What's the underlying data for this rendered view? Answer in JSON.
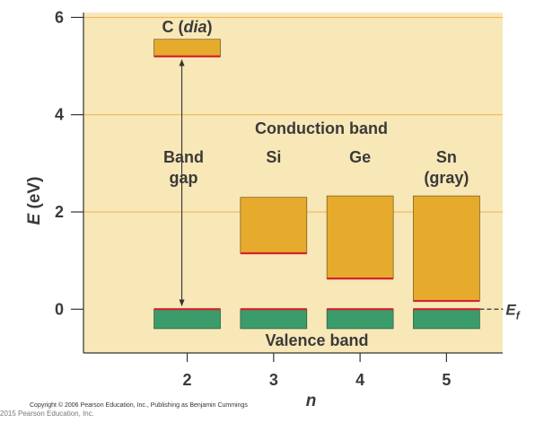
{
  "chart_data": {
    "type": "bar",
    "title": "",
    "xlabel": "n",
    "ylabel": "E (eV)",
    "ylim": [
      -0.9,
      6.1
    ],
    "xlim": [
      0.8,
      5.65
    ],
    "x_ticks": [
      2,
      3,
      4,
      5
    ],
    "y_ticks": [
      0,
      2,
      4,
      6
    ],
    "grid": true,
    "fermi_level": 0,
    "fermi_label": "E",
    "fermi_label_subscript": "f",
    "region_labels": {
      "conduction": "Conduction band",
      "valence": "Valence band",
      "band_gap": "Band gap"
    },
    "elements": [
      {
        "name": "C (dia)",
        "n": 2,
        "band_gap": 5.2,
        "conduction_top": 5.55,
        "valence_top": 0,
        "valence_bottom": -0.4
      },
      {
        "name": "Si",
        "n": 3,
        "band_gap": 1.15,
        "conduction_top": 2.3,
        "valence_top": 0,
        "valence_bottom": -0.4
      },
      {
        "name": "Ge",
        "n": 4,
        "band_gap": 0.63,
        "conduction_top": 2.33,
        "valence_top": 0,
        "valence_bottom": -0.4
      },
      {
        "name": "Sn (gray)",
        "n": 5,
        "band_gap": 0.17,
        "conduction_top": 2.33,
        "valence_top": 0,
        "valence_bottom": -0.4
      }
    ],
    "label_rows": {
      "C (dia)": [
        "C (",
        "dia",
        ")"
      ],
      "Si": [
        "Si"
      ],
      "Ge": [
        "Ge"
      ],
      "Sn (gray)": [
        "Sn",
        "(gray)"
      ],
      "Band gap": [
        "Band",
        "gap"
      ]
    }
  },
  "colors": {
    "background": "#f8e7b7",
    "gridline": "#f2b24e",
    "conduction_fill": "#e6ab2d",
    "valence_fill": "#3a9b6b",
    "band_edge": "#d4232e",
    "axis": "#333333",
    "text": "#3a3a3a"
  },
  "copyright": {
    "line1": "Copyright © 2006 Pearson Education, Inc., Publishing as Benjamin Cummings",
    "line2": "2015 Pearson Education, Inc."
  }
}
